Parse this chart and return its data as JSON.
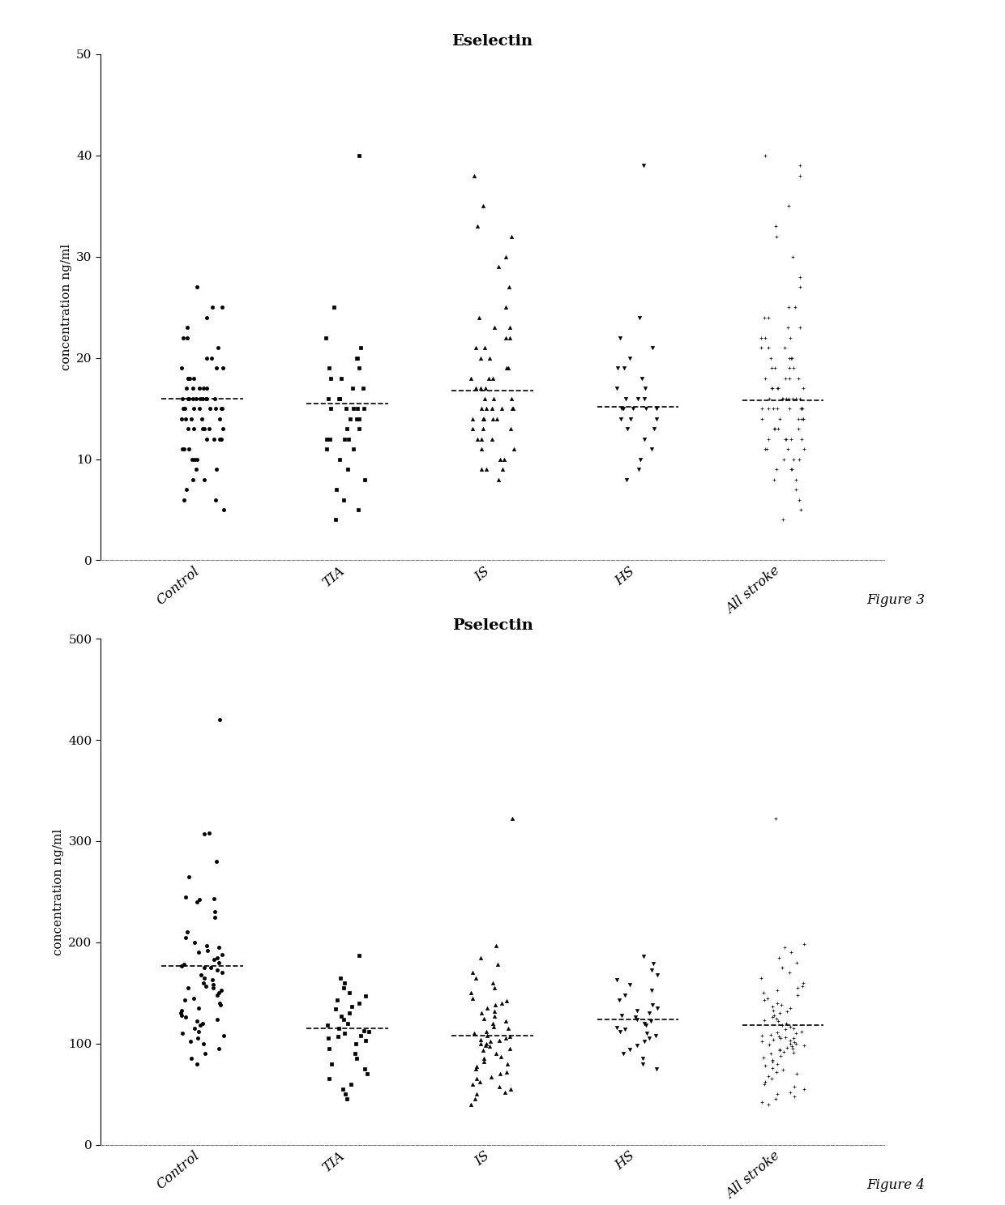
{
  "fig1": {
    "title": "Eselectin",
    "ylabel": "concentration ng/ml",
    "ylim": [
      0,
      50
    ],
    "yticks": [
      0,
      10,
      20,
      30,
      40,
      50
    ],
    "figure_label": "Figure 3",
    "categories": [
      "Control",
      "TIA",
      "IS",
      "HS",
      "All stroke"
    ],
    "means": [
      16.0,
      15.5,
      16.8,
      15.2,
      15.8
    ],
    "mean_halfwidth": 0.28,
    "groups": {
      "Control": {
        "marker": "o",
        "values": [
          27,
          25,
          25,
          24,
          23,
          22,
          22,
          21,
          20,
          20,
          19,
          19,
          19,
          18,
          18,
          18,
          18,
          17,
          17,
          17,
          17,
          17,
          16,
          16,
          16,
          16,
          16,
          16,
          16,
          16,
          16,
          16,
          15,
          15,
          15,
          15,
          15,
          15,
          15,
          15,
          14,
          14,
          14,
          14,
          14,
          13,
          13,
          13,
          13,
          13,
          13,
          12,
          12,
          12,
          12,
          12,
          11,
          11,
          11,
          10,
          10,
          10,
          9,
          9,
          8,
          8,
          7,
          6,
          6,
          5
        ]
      },
      "TIA": {
        "marker": "s",
        "values": [
          40,
          25,
          22,
          21,
          20,
          20,
          19,
          19,
          18,
          18,
          17,
          17,
          16,
          16,
          16,
          16,
          15,
          15,
          15,
          15,
          15,
          14,
          14,
          14,
          13,
          13,
          12,
          12,
          12,
          12,
          11,
          11,
          10,
          9,
          8,
          7,
          6,
          5,
          4
        ]
      },
      "IS": {
        "marker": "^",
        "values": [
          38,
          35,
          33,
          32,
          30,
          29,
          27,
          25,
          24,
          23,
          23,
          22,
          22,
          21,
          21,
          20,
          20,
          19,
          19,
          18,
          18,
          18,
          17,
          17,
          17,
          16,
          16,
          16,
          15,
          15,
          15,
          15,
          15,
          15,
          14,
          14,
          14,
          14,
          14,
          13,
          13,
          13,
          12,
          12,
          12,
          11,
          11,
          10,
          10,
          9,
          9,
          9,
          8
        ]
      },
      "HS": {
        "marker": "v",
        "values": [
          39,
          24,
          22,
          21,
          20,
          19,
          19,
          18,
          17,
          17,
          16,
          16,
          16,
          15,
          15,
          15,
          15,
          15,
          14,
          14,
          14,
          13,
          13,
          12,
          11,
          10,
          9,
          8
        ]
      },
      "All stroke": {
        "marker": "+",
        "values": [
          40,
          39,
          38,
          35,
          33,
          32,
          30,
          28,
          27,
          25,
          25,
          24,
          24,
          23,
          23,
          22,
          22,
          22,
          21,
          21,
          21,
          20,
          20,
          20,
          20,
          19,
          19,
          19,
          19,
          18,
          18,
          18,
          18,
          17,
          17,
          17,
          17,
          17,
          16,
          16,
          16,
          16,
          16,
          16,
          16,
          16,
          15,
          15,
          15,
          15,
          15,
          15,
          15,
          15,
          14,
          14,
          14,
          14,
          14,
          14,
          13,
          13,
          13,
          13,
          12,
          12,
          12,
          12,
          12,
          11,
          11,
          11,
          11,
          10,
          10,
          10,
          9,
          9,
          9,
          8,
          8,
          7,
          6,
          5,
          4
        ]
      }
    }
  },
  "fig2": {
    "title": "Pselectin",
    "ylabel": "concentration ng/ml",
    "ylim": [
      0,
      500
    ],
    "yticks": [
      0,
      100,
      200,
      300,
      400,
      500
    ],
    "figure_label": "Figure 4",
    "categories": [
      "Control",
      "TIA",
      "IS",
      "HS",
      "All stroke"
    ],
    "means": [
      177,
      115,
      108,
      124,
      118
    ],
    "mean_halfwidth": 0.28,
    "groups": {
      "Control": {
        "marker": "o",
        "values": [
          420,
          307,
          308,
          280,
          265,
          245,
          243,
          242,
          240,
          230,
          225,
          210,
          205,
          200,
          197,
          195,
          192,
          190,
          188,
          185,
          183,
          180,
          178,
          177,
          175,
          175,
          173,
          170,
          168,
          165,
          163,
          160,
          158,
          157,
          155,
          155,
          153,
          150,
          148,
          145,
          143,
          140,
          138,
          135,
          133,
          130,
          128,
          126,
          124,
          122,
          120,
          118,
          115,
          112,
          110,
          108,
          105,
          102,
          100,
          95,
          90,
          85,
          80
        ]
      },
      "TIA": {
        "marker": "s",
        "values": [
          187,
          165,
          160,
          155,
          150,
          147,
          143,
          140,
          137,
          134,
          130,
          127,
          124,
          120,
          118,
          115,
          113,
          112,
          110,
          108,
          107,
          105,
          103,
          100,
          95,
          90,
          85,
          80,
          75,
          70,
          65,
          60,
          55,
          50,
          45
        ]
      },
      "IS": {
        "marker": "^",
        "values": [
          322,
          197,
          185,
          178,
          170,
          165,
          160,
          155,
          150,
          145,
          142,
          140,
          138,
          135,
          132,
          130,
          127,
          125,
          122,
          120,
          117,
          115,
          112,
          110,
          108,
          107,
          105,
          104,
          103,
          102,
          100,
          100,
          98,
          97,
          95,
          93,
          90,
          87,
          85,
          82,
          80,
          77,
          75,
          72,
          70,
          67,
          65,
          62,
          60,
          57,
          55,
          52,
          50,
          45,
          40
        ]
      },
      "HS": {
        "marker": "v",
        "values": [
          186,
          179,
          173,
          168,
          163,
          158,
          153,
          148,
          143,
          138,
          135,
          133,
          130,
          128,
          126,
          124,
          122,
          120,
          118,
          116,
          114,
          112,
          110,
          108,
          105,
          102,
          98,
          94,
          90,
          85,
          80,
          75
        ]
      },
      "All stroke": {
        "marker": "+",
        "values": [
          322,
          198,
          195,
          190,
          185,
          180,
          175,
          170,
          165,
          160,
          157,
          155,
          153,
          150,
          148,
          145,
          143,
          140,
          138,
          137,
          135,
          133,
          132,
          130,
          128,
          126,
          125,
          123,
          122,
          120,
          118,
          117,
          115,
          114,
          112,
          111,
          110,
          109,
          108,
          107,
          106,
          105,
          105,
          104,
          103,
          102,
          101,
          100,
          100,
          99,
          98,
          97,
          96,
          95,
          94,
          93,
          92,
          91,
          90,
          88,
          86,
          84,
          82,
          80,
          78,
          76,
          74,
          72,
          70,
          68,
          65,
          62,
          60,
          57,
          55,
          52,
          50,
          48,
          45,
          42,
          40
        ]
      }
    }
  }
}
